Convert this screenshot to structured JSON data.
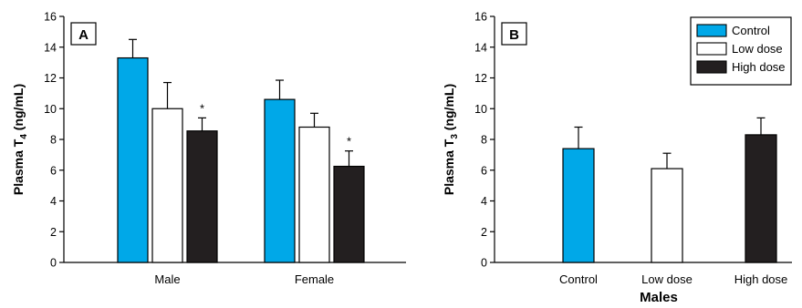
{
  "colors": {
    "control": "#00A8E8",
    "low_dose": "#FFFFFF",
    "high_dose": "#231F20",
    "outline": "#000000"
  },
  "chart_data": [
    {
      "type": "bar",
      "panel_label": "A",
      "ylabel_main": "Plasma T",
      "ylabel_sub": "4",
      "ylabel_unit": " (ng/mL)",
      "xlabel": "",
      "ylim": [
        0,
        16
      ],
      "yticks": [
        "0",
        "2",
        "4",
        "6",
        "8",
        "10",
        "12",
        "14",
        "16"
      ],
      "categories": [
        "Male",
        "Female"
      ],
      "series": [
        {
          "name": "Control",
          "color_key": "control",
          "values": [
            13.3,
            10.6
          ],
          "errors": [
            1.2,
            1.25
          ],
          "significant": [
            false,
            false
          ]
        },
        {
          "name": "Low dose",
          "color_key": "low_dose",
          "values": [
            10.0,
            8.8
          ],
          "errors": [
            1.7,
            0.9
          ],
          "significant": [
            false,
            false
          ]
        },
        {
          "name": "High dose",
          "color_key": "high_dose",
          "values": [
            8.55,
            6.25
          ],
          "errors": [
            0.85,
            1.0
          ],
          "significant": [
            true,
            true
          ]
        }
      ],
      "significance_marker": "*"
    },
    {
      "type": "bar",
      "panel_label": "B",
      "ylabel_main": "Plasma T",
      "ylabel_sub": "3",
      "ylabel_unit": " (ng/mL)",
      "xlabel": "Males",
      "ylim": [
        0,
        16
      ],
      "yticks": [
        "0",
        "2",
        "4",
        "6",
        "8",
        "10",
        "12",
        "14",
        "16"
      ],
      "categories": [
        "Control",
        "Low dose",
        "High dose"
      ],
      "values": [
        7.4,
        6.1,
        8.3
      ],
      "errors": [
        1.4,
        1.0,
        1.1
      ],
      "color_keys": [
        "control",
        "low_dose",
        "high_dose"
      ],
      "legend": [
        {
          "label": "Control",
          "color_key": "control"
        },
        {
          "label": "Low dose",
          "color_key": "low_dose"
        },
        {
          "label": "High dose",
          "color_key": "high_dose"
        }
      ]
    }
  ]
}
